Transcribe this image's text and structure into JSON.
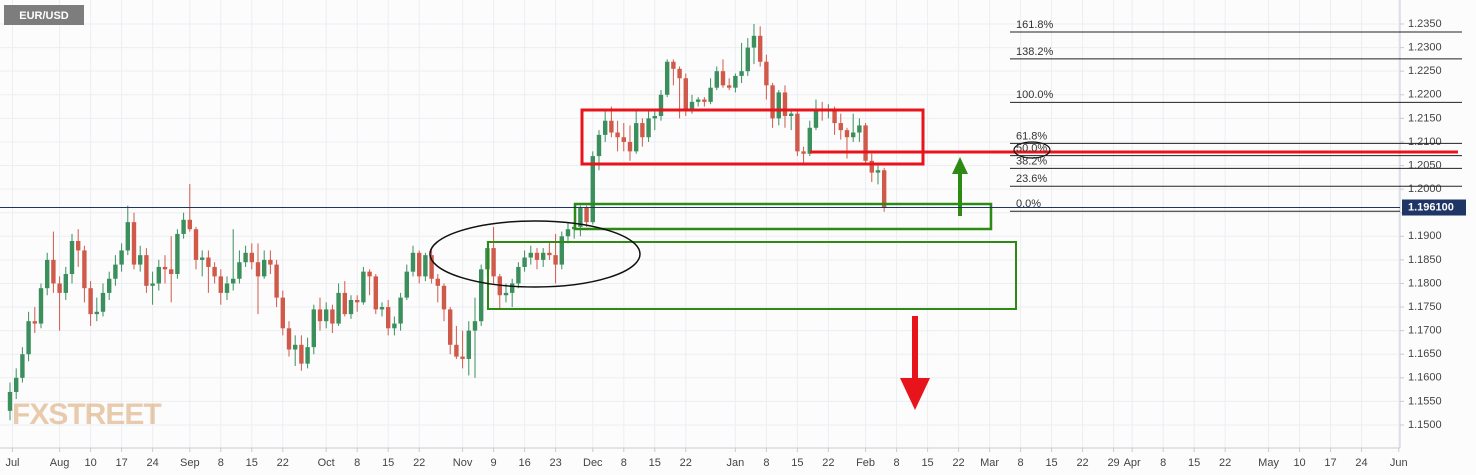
{
  "chart_data": {
    "type": "candlestick",
    "title": "EUR/USD",
    "watermark": "FXSTREET",
    "up_color": "#3a8f5c",
    "down_color": "#d05a4a",
    "grid": true,
    "xlim": [
      -1.613,
      224.2
    ],
    "ylim": [
      1.14512,
      1.24009
    ],
    "xticks": [
      {
        "value": 0.4,
        "label": "Jul"
      },
      {
        "value": 8,
        "label": "Aug"
      },
      {
        "value": 13,
        "label": "10"
      },
      {
        "value": 18,
        "label": "17"
      },
      {
        "value": 23,
        "label": "24"
      },
      {
        "value": 29,
        "label": "Sep"
      },
      {
        "value": 34,
        "label": "8"
      },
      {
        "value": 39,
        "label": "15"
      },
      {
        "value": 44,
        "label": "22"
      },
      {
        "value": 51,
        "label": "Oct"
      },
      {
        "value": 56,
        "label": "8"
      },
      {
        "value": 61,
        "label": "15"
      },
      {
        "value": 66,
        "label": "22"
      },
      {
        "value": 73,
        "label": "Nov"
      },
      {
        "value": 78,
        "label": "9"
      },
      {
        "value": 83,
        "label": "16"
      },
      {
        "value": 88,
        "label": "23"
      },
      {
        "value": 94,
        "label": "Dec"
      },
      {
        "value": 99,
        "label": "8"
      },
      {
        "value": 104,
        "label": "15"
      },
      {
        "value": 109,
        "label": "22"
      },
      {
        "value": 117,
        "label": "Jan"
      },
      {
        "value": 122,
        "label": "8"
      },
      {
        "value": 127,
        "label": "15"
      },
      {
        "value": 132,
        "label": "22"
      },
      {
        "value": 138,
        "label": "Feb"
      },
      {
        "value": 143,
        "label": "8"
      },
      {
        "value": 148,
        "label": "15"
      },
      {
        "value": 153,
        "label": "22"
      },
      {
        "value": 158,
        "label": "Mar"
      },
      {
        "value": 163,
        "label": "8"
      },
      {
        "value": 168,
        "label": "15"
      },
      {
        "value": 173,
        "label": "22"
      },
      {
        "value": 178,
        "label": "29"
      },
      {
        "value": 181,
        "label": "Apr"
      },
      {
        "value": 186,
        "label": "8"
      },
      {
        "value": 191,
        "label": "15"
      },
      {
        "value": 196,
        "label": "22"
      },
      {
        "value": 203,
        "label": "May"
      },
      {
        "value": 208,
        "label": "10"
      },
      {
        "value": 213,
        "label": "17"
      },
      {
        "value": 218,
        "label": "24"
      },
      {
        "value": 224,
        "label": "Jun"
      }
    ],
    "yticks": [
      {
        "value": 1.15,
        "label": "1.1500"
      },
      {
        "value": 1.155,
        "label": "1.1550"
      },
      {
        "value": 1.16,
        "label": "1.1600"
      },
      {
        "value": 1.165,
        "label": "1.1650"
      },
      {
        "value": 1.17,
        "label": "1.1700"
      },
      {
        "value": 1.175,
        "label": "1.1750"
      },
      {
        "value": 1.18,
        "label": "1.1800"
      },
      {
        "value": 1.185,
        "label": "1.1850"
      },
      {
        "value": 1.19,
        "label": "1.1900"
      },
      {
        "value": 1.195,
        "label": "1.1950"
      },
      {
        "value": 1.2,
        "label": "1.2000"
      },
      {
        "value": 1.205,
        "label": "1.2050"
      },
      {
        "value": 1.21,
        "label": "1.2100"
      },
      {
        "value": 1.215,
        "label": "1.2150"
      },
      {
        "value": 1.22,
        "label": "1.2200"
      },
      {
        "value": 1.225,
        "label": "1.2250"
      },
      {
        "value": 1.23,
        "label": "1.2300"
      },
      {
        "value": 1.235,
        "label": "1.2350"
      }
    ],
    "fib_levels": [
      {
        "value": 1.2333,
        "label": "161.8%"
      },
      {
        "value": 1.2276,
        "label": "138.2%"
      },
      {
        "value": 1.2184,
        "label": "100.0%"
      },
      {
        "value": 1.2097,
        "label": "61.8%"
      },
      {
        "value": 1.2071,
        "label": "50.0%"
      },
      {
        "value": 1.2044,
        "label": "38.2%"
      },
      {
        "value": 1.2006,
        "label": "23.6%"
      },
      {
        "value": 1.1953,
        "label": "0.0%"
      }
    ],
    "last_price": {
      "value": 1.1961,
      "label": "1.196100"
    },
    "ohlc": [
      [
        1.153,
        1.159,
        1.151,
        1.157
      ],
      [
        1.157,
        1.162,
        1.1555,
        1.16
      ],
      [
        1.16,
        1.1665,
        1.159,
        1.165
      ],
      [
        1.165,
        1.174,
        1.1635,
        1.172
      ],
      [
        1.172,
        1.175,
        1.1695,
        1.1715
      ],
      [
        1.1715,
        1.18,
        1.1705,
        1.179
      ],
      [
        1.179,
        1.1865,
        1.1775,
        1.185
      ],
      [
        1.185,
        1.191,
        1.178,
        1.18
      ],
      [
        1.18,
        1.1815,
        1.17,
        1.178
      ],
      [
        1.178,
        1.1835,
        1.1765,
        1.182
      ],
      [
        1.182,
        1.1905,
        1.18,
        1.189
      ],
      [
        1.189,
        1.1915,
        1.1835,
        1.187
      ],
      [
        1.187,
        1.188,
        1.176,
        1.179
      ],
      [
        1.179,
        1.1805,
        1.171,
        1.1735
      ],
      [
        1.1735,
        1.177,
        1.172,
        1.174
      ],
      [
        1.174,
        1.18,
        1.173,
        1.178
      ],
      [
        1.178,
        1.1825,
        1.1765,
        1.181
      ],
      [
        1.181,
        1.186,
        1.1795,
        1.184
      ],
      [
        1.184,
        1.1885,
        1.1825,
        1.187
      ],
      [
        1.187,
        1.1965,
        1.186,
        1.193
      ],
      [
        1.193,
        1.195,
        1.183,
        1.184
      ],
      [
        1.184,
        1.188,
        1.1825,
        1.186
      ],
      [
        1.186,
        1.1875,
        1.178,
        1.1795
      ],
      [
        1.1795,
        1.1825,
        1.1755,
        1.18
      ],
      [
        1.18,
        1.185,
        1.1785,
        1.1835
      ],
      [
        1.1835,
        1.186,
        1.18,
        1.183
      ],
      [
        1.183,
        1.19,
        1.176,
        1.182
      ],
      [
        1.182,
        1.1915,
        1.181,
        1.1905
      ],
      [
        1.1905,
        1.195,
        1.1895,
        1.1935
      ],
      [
        1.1935,
        1.2011,
        1.191,
        1.1915
      ],
      [
        1.1915,
        1.192,
        1.183,
        1.185
      ],
      [
        1.185,
        1.187,
        1.1815,
        1.1855
      ],
      [
        1.1855,
        1.187,
        1.178,
        1.1835
      ],
      [
        1.1835,
        1.1845,
        1.18,
        1.1815
      ],
      [
        1.1815,
        1.183,
        1.1755,
        1.178
      ],
      [
        1.178,
        1.1815,
        1.1765,
        1.18
      ],
      [
        1.18,
        1.1915,
        1.1785,
        1.181
      ],
      [
        1.181,
        1.187,
        1.18,
        1.1845
      ],
      [
        1.1845,
        1.188,
        1.1835,
        1.1865
      ],
      [
        1.1865,
        1.1885,
        1.183,
        1.1845
      ],
      [
        1.1845,
        1.1885,
        1.1735,
        1.1815
      ],
      [
        1.1815,
        1.187,
        1.181,
        1.185
      ],
      [
        1.185,
        1.187,
        1.182,
        1.184
      ],
      [
        1.184,
        1.185,
        1.175,
        1.177
      ],
      [
        1.177,
        1.1785,
        1.169,
        1.1705
      ],
      [
        1.1705,
        1.172,
        1.1645,
        1.166
      ],
      [
        1.166,
        1.169,
        1.1625,
        1.167
      ],
      [
        1.167,
        1.169,
        1.1615,
        1.163
      ],
      [
        1.163,
        1.1685,
        1.162,
        1.1665
      ],
      [
        1.1665,
        1.1755,
        1.165,
        1.1745
      ],
      [
        1.1745,
        1.177,
        1.17,
        1.172
      ],
      [
        1.172,
        1.176,
        1.1705,
        1.1745
      ],
      [
        1.1745,
        1.1755,
        1.1695,
        1.1715
      ],
      [
        1.1715,
        1.18,
        1.171,
        1.178
      ],
      [
        1.178,
        1.1805,
        1.173,
        1.1735
      ],
      [
        1.1735,
        1.1775,
        1.1725,
        1.1765
      ],
      [
        1.1765,
        1.1775,
        1.174,
        1.176
      ],
      [
        1.176,
        1.1835,
        1.1755,
        1.1825
      ],
      [
        1.1825,
        1.183,
        1.1775,
        1.1815
      ],
      [
        1.1815,
        1.182,
        1.1735,
        1.1745
      ],
      [
        1.1745,
        1.176,
        1.173,
        1.175
      ],
      [
        1.175,
        1.1765,
        1.169,
        1.1705
      ],
      [
        1.1705,
        1.173,
        1.169,
        1.1715
      ],
      [
        1.1715,
        1.178,
        1.17,
        1.177
      ],
      [
        1.177,
        1.184,
        1.1765,
        1.1825
      ],
      [
        1.1825,
        1.188,
        1.1815,
        1.1865
      ],
      [
        1.1865,
        1.187,
        1.18,
        1.1815
      ],
      [
        1.1815,
        1.1865,
        1.1805,
        1.186
      ],
      [
        1.186,
        1.187,
        1.18,
        1.181
      ],
      [
        1.181,
        1.182,
        1.176,
        1.1795
      ],
      [
        1.1795,
        1.18,
        1.172,
        1.1745
      ],
      [
        1.1745,
        1.175,
        1.165,
        1.167
      ],
      [
        1.167,
        1.171,
        1.164,
        1.1645
      ],
      [
        1.1645,
        1.17,
        1.162,
        1.164
      ],
      [
        1.164,
        1.172,
        1.1605,
        1.17
      ],
      [
        1.17,
        1.177,
        1.16,
        1.172
      ],
      [
        1.172,
        1.184,
        1.171,
        1.183
      ],
      [
        1.183,
        1.189,
        1.1815,
        1.1875
      ],
      [
        1.1875,
        1.192,
        1.18,
        1.1815
      ],
      [
        1.1815,
        1.182,
        1.1745,
        1.1775
      ],
      [
        1.1775,
        1.18,
        1.176,
        1.178
      ],
      [
        1.178,
        1.181,
        1.175,
        1.18
      ],
      [
        1.18,
        1.1845,
        1.179,
        1.1835
      ],
      [
        1.1835,
        1.187,
        1.1825,
        1.1855
      ],
      [
        1.1855,
        1.188,
        1.184,
        1.1865
      ],
      [
        1.1865,
        1.1875,
        1.183,
        1.185
      ],
      [
        1.185,
        1.1875,
        1.1835,
        1.1865
      ],
      [
        1.1865,
        1.189,
        1.185,
        1.186
      ],
      [
        1.186,
        1.1905,
        1.18,
        1.184
      ],
      [
        1.184,
        1.191,
        1.183,
        1.19
      ],
      [
        1.19,
        1.193,
        1.1885,
        1.1915
      ],
      [
        1.1915,
        1.193,
        1.1895,
        1.192
      ],
      [
        1.192,
        1.1965,
        1.19,
        1.196
      ],
      [
        1.196,
        1.1965,
        1.192,
        1.193
      ],
      [
        1.193,
        1.208,
        1.1925,
        1.207
      ],
      [
        1.207,
        1.2125,
        1.204,
        1.2115
      ],
      [
        1.2115,
        1.217,
        1.21,
        1.2145
      ],
      [
        1.2145,
        1.2175,
        1.211,
        1.212
      ],
      [
        1.212,
        1.2145,
        1.208,
        1.211
      ],
      [
        1.211,
        1.214,
        1.208,
        1.21
      ],
      [
        1.21,
        1.2135,
        1.206,
        1.208
      ],
      [
        1.208,
        1.2165,
        1.2075,
        1.214
      ],
      [
        1.214,
        1.215,
        1.209,
        1.211
      ],
      [
        1.211,
        1.2165,
        1.21,
        1.215
      ],
      [
        1.215,
        1.2165,
        1.2125,
        1.2155
      ],
      [
        1.2155,
        1.221,
        1.2145,
        1.22
      ],
      [
        1.22,
        1.2275,
        1.2195,
        1.227
      ],
      [
        1.227,
        1.2275,
        1.222,
        1.2255
      ],
      [
        1.2255,
        1.226,
        1.215,
        1.2235
      ],
      [
        1.2235,
        1.2245,
        1.2155,
        1.2165
      ],
      [
        1.2165,
        1.22,
        1.216,
        1.2185
      ],
      [
        1.2185,
        1.2195,
        1.2175,
        1.219
      ],
      [
        1.219,
        1.2195,
        1.2175,
        1.2185
      ],
      [
        1.2185,
        1.2235,
        1.218,
        1.2215
      ],
      [
        1.2215,
        1.226,
        1.221,
        1.225
      ],
      [
        1.225,
        1.2275,
        1.2215,
        1.222
      ],
      [
        1.222,
        1.2235,
        1.221,
        1.2215
      ],
      [
        1.2215,
        1.2245,
        1.2205,
        1.224
      ],
      [
        1.224,
        1.231,
        1.2225,
        1.225
      ],
      [
        1.225,
        1.232,
        1.224,
        1.23
      ],
      [
        1.23,
        1.235,
        1.2265,
        1.2325
      ],
      [
        1.2325,
        1.2345,
        1.226,
        1.227
      ],
      [
        1.227,
        1.2285,
        1.219,
        1.222
      ],
      [
        1.222,
        1.2225,
        1.213,
        1.215
      ],
      [
        1.215,
        1.221,
        1.2135,
        1.2205
      ],
      [
        1.2205,
        1.222,
        1.213,
        1.2155
      ],
      [
        1.2155,
        1.217,
        1.2125,
        1.216
      ],
      [
        1.216,
        1.2165,
        1.207,
        1.208
      ],
      [
        1.208,
        1.209,
        1.2055,
        1.2075
      ],
      [
        1.2075,
        1.2145,
        1.207,
        1.213
      ],
      [
        1.213,
        1.219,
        1.2125,
        1.217
      ],
      [
        1.217,
        1.2185,
        1.2145,
        1.2165
      ],
      [
        1.2165,
        1.218,
        1.215,
        1.217
      ],
      [
        1.217,
        1.2175,
        1.2115,
        1.214
      ],
      [
        1.214,
        1.216,
        1.2105,
        1.2125
      ],
      [
        1.2125,
        1.213,
        1.2065,
        1.211
      ],
      [
        1.211,
        1.216,
        1.21,
        1.212
      ],
      [
        1.212,
        1.215,
        1.21,
        1.2135
      ],
      [
        1.2135,
        1.214,
        1.2055,
        1.206
      ],
      [
        1.206,
        1.2075,
        1.2015,
        1.2035
      ],
      [
        1.2035,
        1.205,
        1.201,
        1.204
      ],
      [
        1.204,
        1.2045,
        1.1952,
        1.1961
      ]
    ]
  }
}
